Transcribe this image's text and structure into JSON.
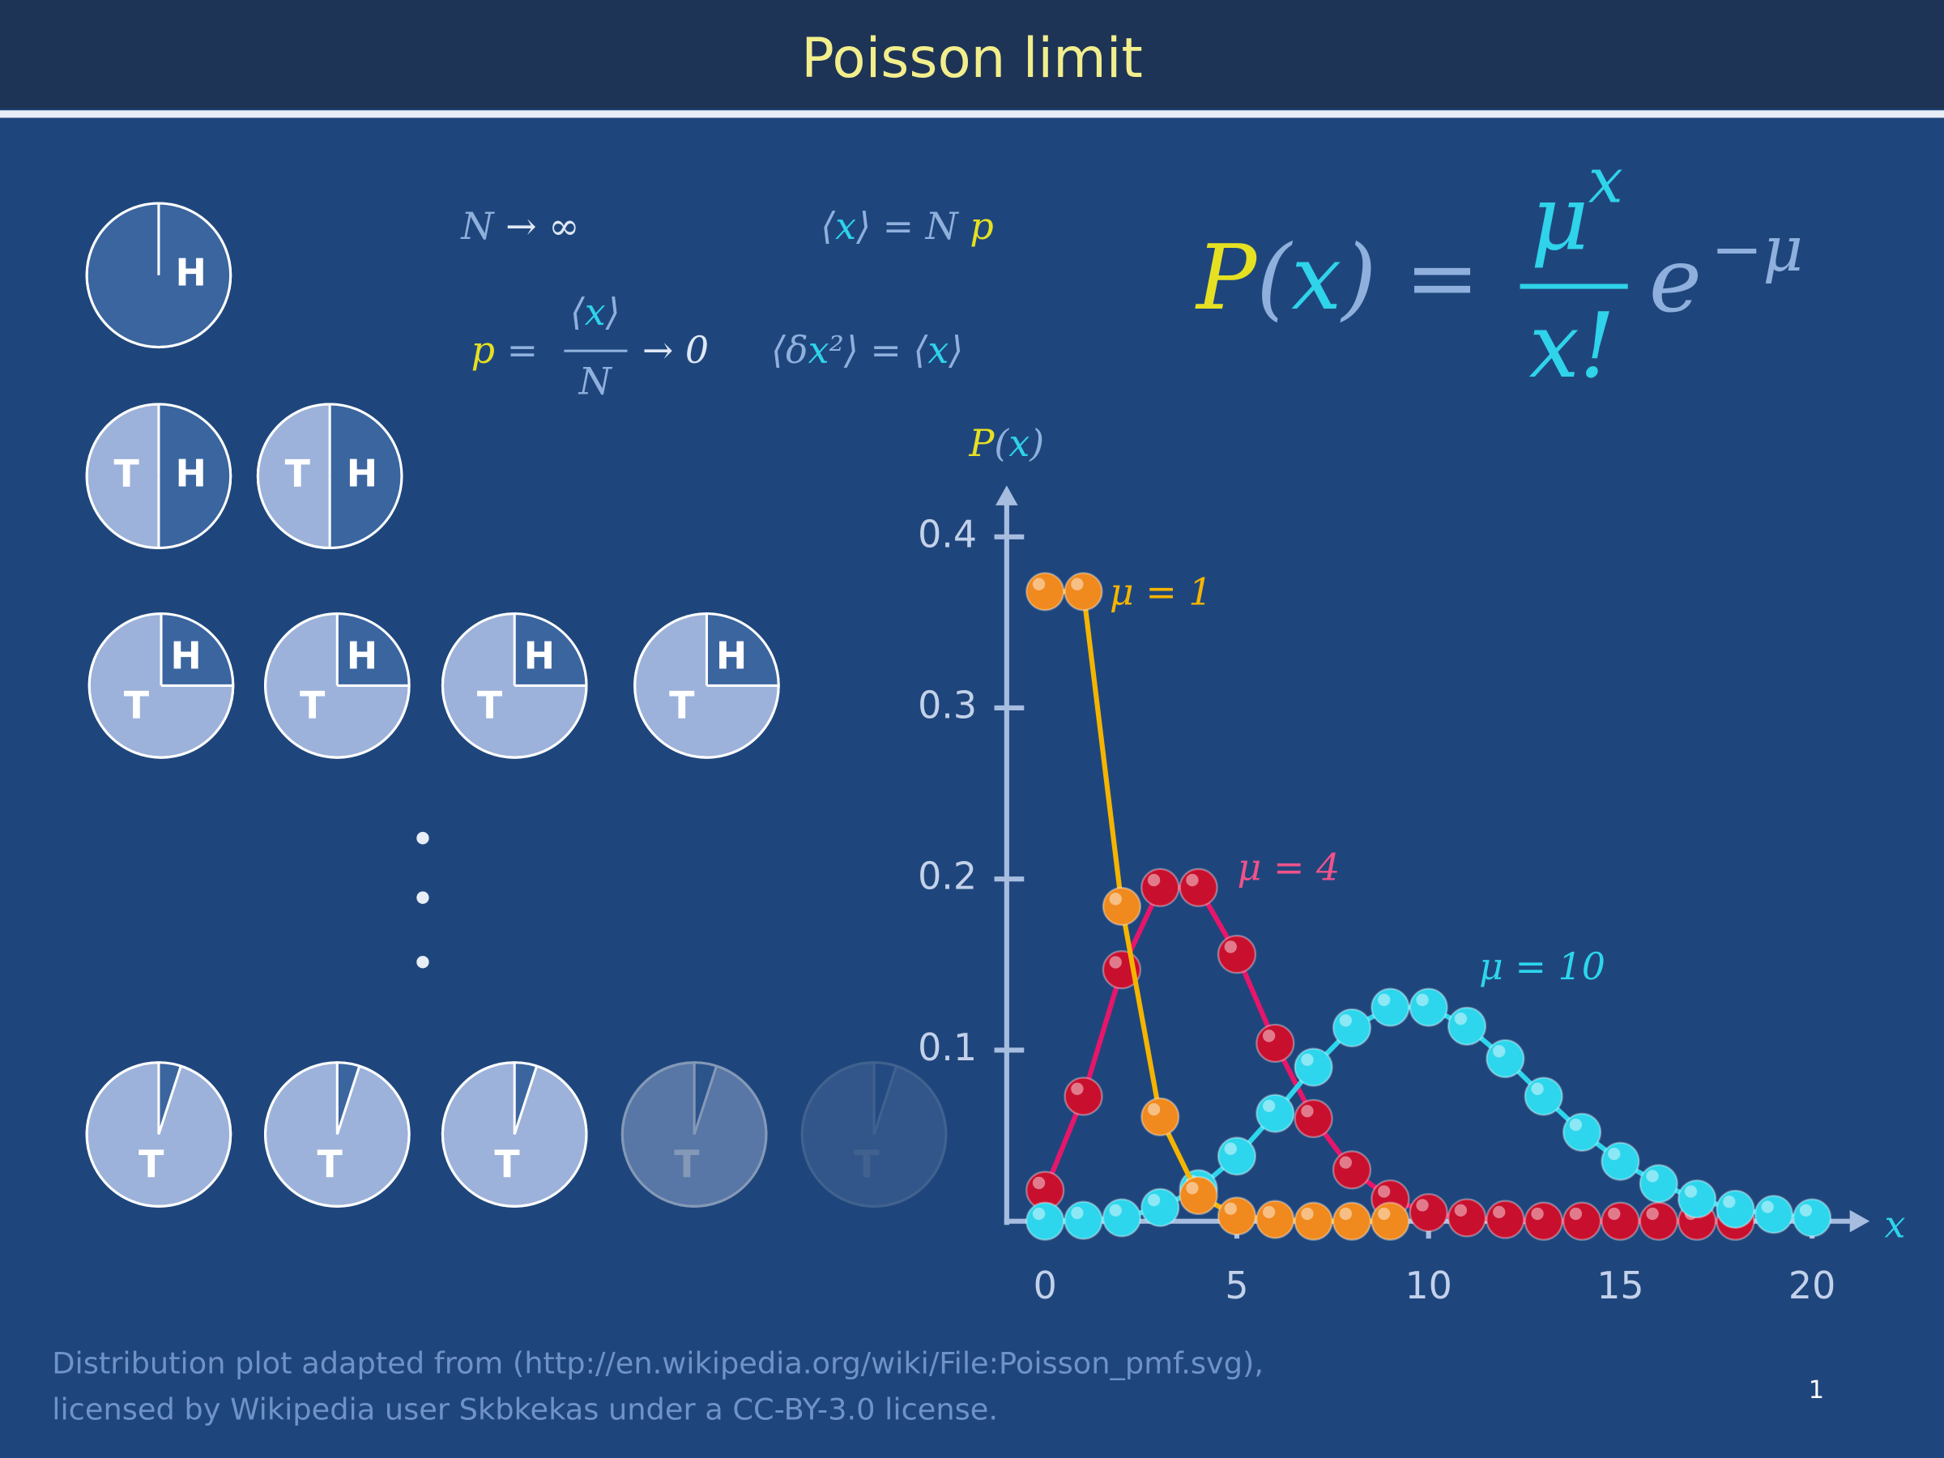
{
  "header": {
    "title": "Poisson limit"
  },
  "coins": {
    "rows": [
      {
        "heads_fraction": 1,
        "coins": [
          {
            "heads": "H"
          }
        ]
      },
      {
        "heads_fraction": 0.5,
        "coins": [
          {
            "tails": "T",
            "heads": "H"
          },
          {
            "tails": "T",
            "heads": "H"
          }
        ]
      },
      {
        "heads_fraction": 0.25,
        "coins": [
          {
            "tails": "T",
            "heads": "H"
          },
          {
            "tails": "T",
            "heads": "H"
          },
          {
            "tails": "T",
            "heads": "H"
          },
          {
            "tails": "T",
            "heads": "H"
          }
        ]
      },
      {
        "heads_fraction": 0.05,
        "coins": [
          {
            "tails": "T"
          },
          {
            "tails": "T"
          },
          {
            "tails": "T"
          },
          {
            "tails": "T"
          },
          {
            "tails": "T"
          }
        ]
      }
    ]
  },
  "formulas": [
    [
      {
        "text": "N",
        "color": "#8fb0dd"
      },
      {
        "text": " → ∞",
        "color": "#dfe8f5"
      }
    ],
    [
      {
        "text": "⟨",
        "color": "#8fb0dd"
      },
      {
        "text": "x",
        "color": "#2fd3ea"
      },
      {
        "text": "⟩ = N",
        "color": "#8fb0dd"
      },
      {
        "text": " p",
        "color": "#e6e022"
      }
    ],
    [
      {
        "text": "p",
        "color": "#e6e022"
      },
      {
        "text": " =",
        "color": "#8fb0dd"
      }
    ],
    [
      {
        "text": "⟨",
        "color": "#8fb0dd"
      },
      {
        "text": "x",
        "color": "#2fd3ea"
      },
      {
        "text": "⟩",
        "color": "#8fb0dd"
      }
    ],
    [
      {
        "text": "N",
        "color": "#8fb0dd"
      }
    ],
    [
      {
        "text": "→ 0",
        "color": "#dfe8f5"
      }
    ],
    [
      {
        "text": "⟨δ",
        "color": "#8fb0dd"
      },
      {
        "text": "x",
        "color": "#2fd3ea"
      },
      {
        "text": "²⟩ = ⟨",
        "color": "#8fb0dd"
      },
      {
        "text": "x",
        "color": "#2fd3ea"
      },
      {
        "text": "⟩",
        "color": "#8fb0dd"
      }
    ],
    [
      {
        "text": "P",
        "color": "#e6e022"
      },
      {
        "text": "(",
        "color": "#8fb0dd"
      },
      {
        "text": "x",
        "color": "#2fd3ea"
      },
      {
        "text": ") =",
        "color": "#8fb0dd"
      }
    ],
    [
      {
        "text": "μ",
        "color": "#2fd3ea"
      }
    ],
    [
      {
        "text": "x",
        "color": "#2fd3ea"
      }
    ],
    [
      {
        "text": "x!",
        "color": "#2fd3ea"
      }
    ],
    [
      {
        "text": "e",
        "color": "#8fb0dd"
      }
    ],
    [
      {
        "text": "−μ",
        "color": "#8fb0dd"
      }
    ]
  ],
  "chart_data": {
    "type": "line",
    "y_label": [
      {
        "text": "P",
        "color": "#e6e022"
      },
      {
        "text": "(",
        "color": "#8fb0dd"
      },
      {
        "text": "x",
        "color": "#2fd3ea"
      },
      {
        "text": ")",
        "color": "#8fb0dd"
      }
    ],
    "x_label": "x",
    "x": [
      0,
      1,
      2,
      3,
      4,
      5,
      6,
      7,
      8,
      9,
      10,
      11,
      12,
      13,
      14,
      15,
      16,
      17,
      18,
      19,
      20
    ],
    "xlim": [
      -1,
      21.5
    ],
    "ylim": [
      0,
      0.43
    ],
    "xticks": [
      0,
      5,
      10,
      15,
      20
    ],
    "yticks": [
      0.1,
      0.2,
      0.3,
      0.4
    ],
    "series": [
      {
        "name": "μ = 1",
        "color": "#f5b400",
        "marker_color": "#f08a1e",
        "values": [
          0.368,
          0.368,
          0.184,
          0.061,
          0.015,
          0.003,
          0.001,
          0,
          0,
          0,
          null,
          null,
          null,
          null,
          null,
          null,
          null,
          null,
          null,
          null,
          null
        ]
      },
      {
        "name": "μ = 4",
        "color": "#e8156a",
        "marker_color": "#c8102e",
        "values": [
          0.018,
          0.073,
          0.147,
          0.195,
          0.195,
          0.156,
          0.104,
          0.06,
          0.03,
          0.013,
          0.005,
          0.002,
          0.001,
          0,
          0,
          0,
          0,
          0,
          0,
          null,
          null
        ]
      },
      {
        "name": "μ = 10",
        "color": "#2dd6ec",
        "marker_color": "#2dd6ec",
        "values": [
          0,
          0.0005,
          0.002,
          0.008,
          0.019,
          0.038,
          0.063,
          0.09,
          0.113,
          0.125,
          0.125,
          0.114,
          0.095,
          0.073,
          0.052,
          0.035,
          0.022,
          0.013,
          0.007,
          0.004,
          0.002
        ]
      }
    ]
  },
  "footer": {
    "lines": [
      "Distribution plot adapted from (http://en.wikipedia.org/wiki/File:Poisson_pmf.svg),",
      "licensed by Wikipedia user Skbkekas under a CC-BY-3.0 license."
    ],
    "page": "1"
  }
}
